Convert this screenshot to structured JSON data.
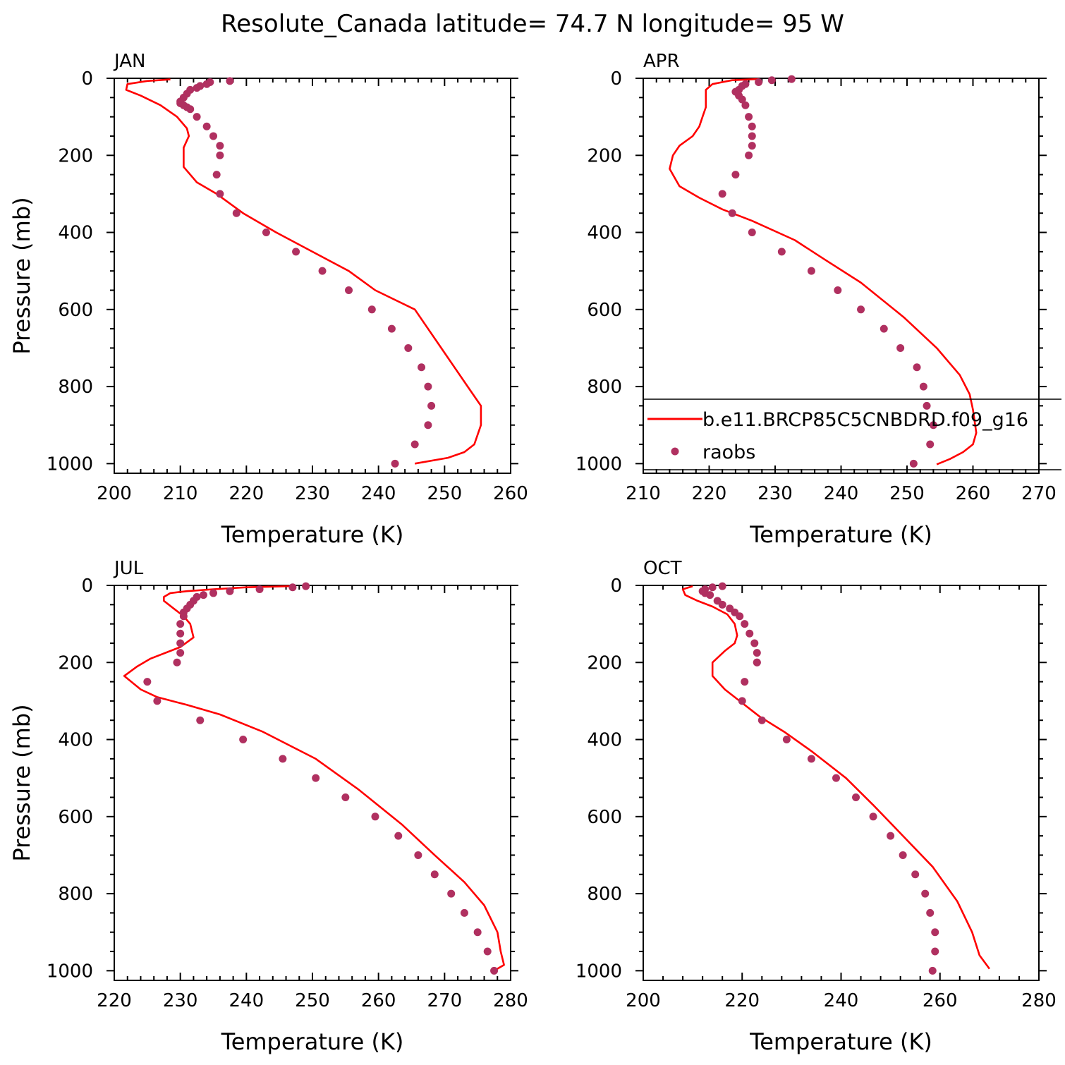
{
  "title": "Resolute_Canada  latitude= 74.7 N longitude= 95 W",
  "colors": {
    "model": "#ff0000",
    "obs": "#b03060",
    "axis": "#000000"
  },
  "legend": {
    "model_label": "b.e11.BRCP85C5CNBDRD.f09_g16",
    "obs_label": "raobs",
    "placement": "inside APR panel, lower area, clipped at right edge"
  },
  "chart_data": [
    {
      "type": "line",
      "panel": "JAN",
      "xlabel": "Temperature (K)",
      "ylabel": "Pressure (mb)",
      "xlim": [
        200,
        260
      ],
      "ylim": [
        1025,
        0
      ],
      "xticks": [
        200,
        210,
        220,
        230,
        240,
        250,
        260
      ],
      "yticks": [
        0,
        200,
        400,
        600,
        800,
        1000
      ],
      "series": [
        {
          "name": "b.e11.BRCP85C5CNBDRD.f09_g16",
          "style": "line",
          "x": [
            208.5,
            205,
            202,
            201.8,
            204,
            207,
            209.5,
            211,
            211.3,
            210.5,
            210.5,
            212.5,
            215.5,
            219.5,
            224.5,
            230,
            235.5,
            239.5,
            245.5,
            249.5,
            253.5,
            255.5,
            255.5,
            254.5,
            253,
            250.5,
            245.5
          ],
          "y": [
            3,
            7,
            15,
            30,
            45,
            70,
            100,
            130,
            150,
            180,
            230,
            270,
            300,
            350,
            400,
            450,
            500,
            550,
            600,
            700,
            800,
            850,
            900,
            950,
            970,
            985,
            1000
          ]
        },
        {
          "name": "raobs",
          "style": "dots",
          "x": [
            217.5,
            214.5,
            214,
            213,
            212.5,
            211.5,
            211,
            210.5,
            210,
            210,
            210.5,
            211,
            211.5,
            212.5,
            214,
            215,
            216,
            216,
            215.5,
            216,
            218.5,
            223,
            227.5,
            231.5,
            235.5,
            239,
            242,
            244.5,
            246.5,
            247.5,
            248,
            247.5,
            245.5,
            242.5
          ],
          "y": [
            7,
            10,
            15,
            20,
            25,
            30,
            40,
            50,
            60,
            65,
            70,
            75,
            80,
            100,
            125,
            150,
            175,
            200,
            250,
            300,
            350,
            400,
            450,
            500,
            550,
            600,
            650,
            700,
            750,
            800,
            850,
            900,
            950,
            1000
          ]
        }
      ]
    },
    {
      "type": "line",
      "panel": "APR",
      "xlabel": "Temperature (K)",
      "ylabel": "",
      "xlim": [
        210,
        270
      ],
      "ylim": [
        1025,
        0
      ],
      "xticks": [
        210,
        220,
        230,
        240,
        250,
        260,
        270
      ],
      "yticks": [
        0,
        200,
        400,
        600,
        800,
        1000
      ],
      "series": [
        {
          "name": "b.e11.BRCP85C5CNBDRD.f09_g16",
          "style": "line",
          "x": [
            227.5,
            223.5,
            220.5,
            219.5,
            219.5,
            219.5,
            219,
            218.5,
            217.5,
            215.5,
            214.5,
            214,
            215.5,
            218.5,
            222,
            226.5,
            233,
            237.5,
            243,
            249.5,
            254.5,
            258,
            259.5,
            260,
            260.5,
            260,
            258.5,
            256.5,
            254.5
          ],
          "y": [
            2,
            5,
            15,
            30,
            50,
            75,
            100,
            125,
            150,
            175,
            200,
            235,
            280,
            310,
            340,
            370,
            420,
            470,
            530,
            620,
            700,
            770,
            820,
            860,
            920,
            950,
            970,
            988,
            1002
          ]
        },
        {
          "name": "raobs",
          "style": "dots",
          "x": [
            232.5,
            229.5,
            227.5,
            225.5,
            225,
            224.5,
            224,
            224.5,
            225,
            225.5,
            226,
            226.5,
            226.5,
            226.5,
            226,
            224,
            222,
            223.5,
            226.5,
            231,
            235.5,
            239.5,
            243,
            246.5,
            249,
            251.5,
            252.5,
            253,
            254,
            253.5,
            251
          ],
          "y": [
            2,
            5,
            10,
            15,
            20,
            30,
            35,
            45,
            55,
            70,
            100,
            125,
            150,
            175,
            200,
            250,
            300,
            350,
            400,
            450,
            500,
            550,
            600,
            650,
            700,
            750,
            800,
            850,
            900,
            950,
            1000
          ]
        }
      ]
    },
    {
      "type": "line",
      "panel": "JUL",
      "xlabel": "Temperature (K)",
      "ylabel": "Pressure (mb)",
      "xlim": [
        220,
        280
      ],
      "ylim": [
        1025,
        0
      ],
      "xticks": [
        220,
        230,
        240,
        250,
        260,
        270,
        280
      ],
      "yticks": [
        0,
        200,
        400,
        600,
        800,
        1000
      ],
      "series": [
        {
          "name": "b.e11.BRCP85C5CNBDRD.f09_g16",
          "style": "line",
          "x": [
            246.5,
            240,
            235,
            231,
            228.5,
            227.5,
            227.5,
            229,
            230.5,
            231.5,
            232,
            230,
            225.5,
            223.5,
            221.5,
            224,
            226.5,
            231,
            236,
            242.5,
            250.5,
            257,
            263.5,
            268.5,
            273,
            276,
            278,
            278.5,
            279,
            277.5
          ],
          "y": [
            2,
            5,
            10,
            15,
            20,
            30,
            40,
            60,
            80,
            100,
            135,
            160,
            190,
            210,
            235,
            270,
            290,
            310,
            335,
            380,
            450,
            530,
            620,
            700,
            770,
            830,
            900,
            950,
            985,
            1000
          ]
        },
        {
          "name": "raobs",
          "style": "dots",
          "x": [
            249,
            247,
            242,
            237.5,
            235,
            233.5,
            232.5,
            232,
            231.5,
            231,
            230.5,
            230.5,
            230,
            230,
            230,
            230,
            229.5,
            225,
            226.5,
            233,
            239.5,
            245.5,
            250.5,
            255,
            259.5,
            263,
            266,
            268.5,
            271,
            273,
            275,
            276.5,
            277.5
          ],
          "y": [
            2,
            5,
            10,
            15,
            20,
            25,
            30,
            40,
            50,
            60,
            70,
            80,
            100,
            125,
            150,
            175,
            200,
            250,
            300,
            350,
            400,
            450,
            500,
            550,
            600,
            650,
            700,
            750,
            800,
            850,
            900,
            950,
            1000
          ]
        }
      ]
    },
    {
      "type": "line",
      "panel": "OCT",
      "xlabel": "Temperature (K)",
      "ylabel": "",
      "xlim": [
        200,
        280
      ],
      "ylim": [
        1025,
        0
      ],
      "xticks": [
        200,
        220,
        240,
        260,
        280
      ],
      "yticks": [
        0,
        200,
        400,
        600,
        800,
        1000
      ],
      "series": [
        {
          "name": "b.e11.BRCP85C5CNBDRD.f09_g16",
          "style": "line",
          "x": [
            210,
            208,
            208.5,
            211,
            214,
            217,
            218.5,
            219,
            218.5,
            216.5,
            214,
            214,
            216.5,
            219.5,
            223.5,
            228.5,
            234,
            241,
            246.5,
            252.5,
            258.5,
            263.5,
            266.5,
            268,
            270
          ],
          "y": [
            2,
            10,
            25,
            40,
            55,
            75,
            100,
            130,
            150,
            170,
            200,
            235,
            270,
            300,
            340,
            380,
            430,
            500,
            570,
            650,
            730,
            820,
            900,
            960,
            995
          ]
        },
        {
          "name": "raobs",
          "style": "dots",
          "x": [
            216,
            214,
            212.5,
            212,
            212.5,
            213.5,
            215,
            216,
            217.5,
            218.5,
            219.5,
            220.5,
            221.5,
            222.5,
            223,
            223,
            223,
            220.5,
            220,
            224,
            229,
            234,
            239,
            243,
            246.5,
            250,
            252.5,
            255,
            257,
            258,
            259,
            259,
            258.5
          ],
          "y": [
            2,
            5,
            10,
            15,
            20,
            25,
            40,
            50,
            60,
            70,
            80,
            100,
            125,
            150,
            175,
            200,
            200,
            250,
            300,
            350,
            400,
            450,
            500,
            550,
            600,
            650,
            700,
            750,
            800,
            850,
            900,
            950,
            1000
          ]
        }
      ]
    }
  ]
}
